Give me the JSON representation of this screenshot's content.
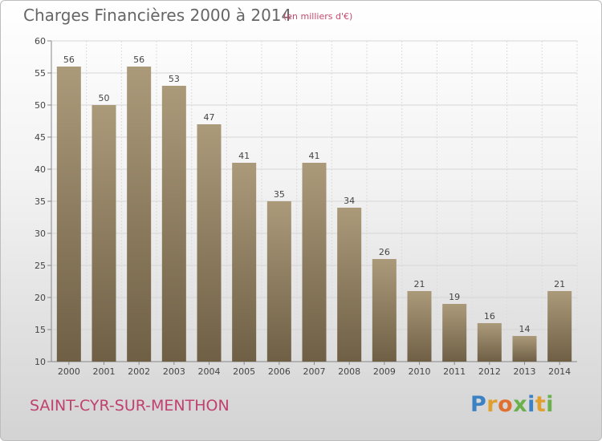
{
  "chart_data": {
    "type": "bar",
    "title": "Charges Financières 2000 à 2014",
    "subtitle": "(en milliers d'€)",
    "categories": [
      "2000",
      "2001",
      "2002",
      "2003",
      "2004",
      "2005",
      "2006",
      "2007",
      "2008",
      "2009",
      "2010",
      "2011",
      "2012",
      "2013",
      "2014"
    ],
    "values": [
      56,
      50,
      56,
      53,
      47,
      41,
      35,
      41,
      34,
      26,
      21,
      19,
      16,
      14,
      21
    ],
    "xlabel": "",
    "ylabel": "",
    "ylim": [
      10,
      60
    ],
    "yticks": [
      10,
      15,
      20,
      25,
      30,
      35,
      40,
      45,
      50,
      55,
      60
    ],
    "grid": true,
    "bar_color": "#8c7a5c"
  },
  "footer": {
    "commune": "SAINT-CYR-SUR-MENTHON"
  },
  "brand": {
    "letters": [
      {
        "char": "P",
        "color": "#3b82c4"
      },
      {
        "char": "r",
        "color": "#e0a030"
      },
      {
        "char": "o",
        "color": "#e07030"
      },
      {
        "char": "x",
        "color": "#6ab04c"
      },
      {
        "char": "i",
        "color": "#3b82c4"
      },
      {
        "char": "t",
        "color": "#e0a030"
      },
      {
        "char": "i",
        "color": "#6ab04c"
      }
    ]
  }
}
